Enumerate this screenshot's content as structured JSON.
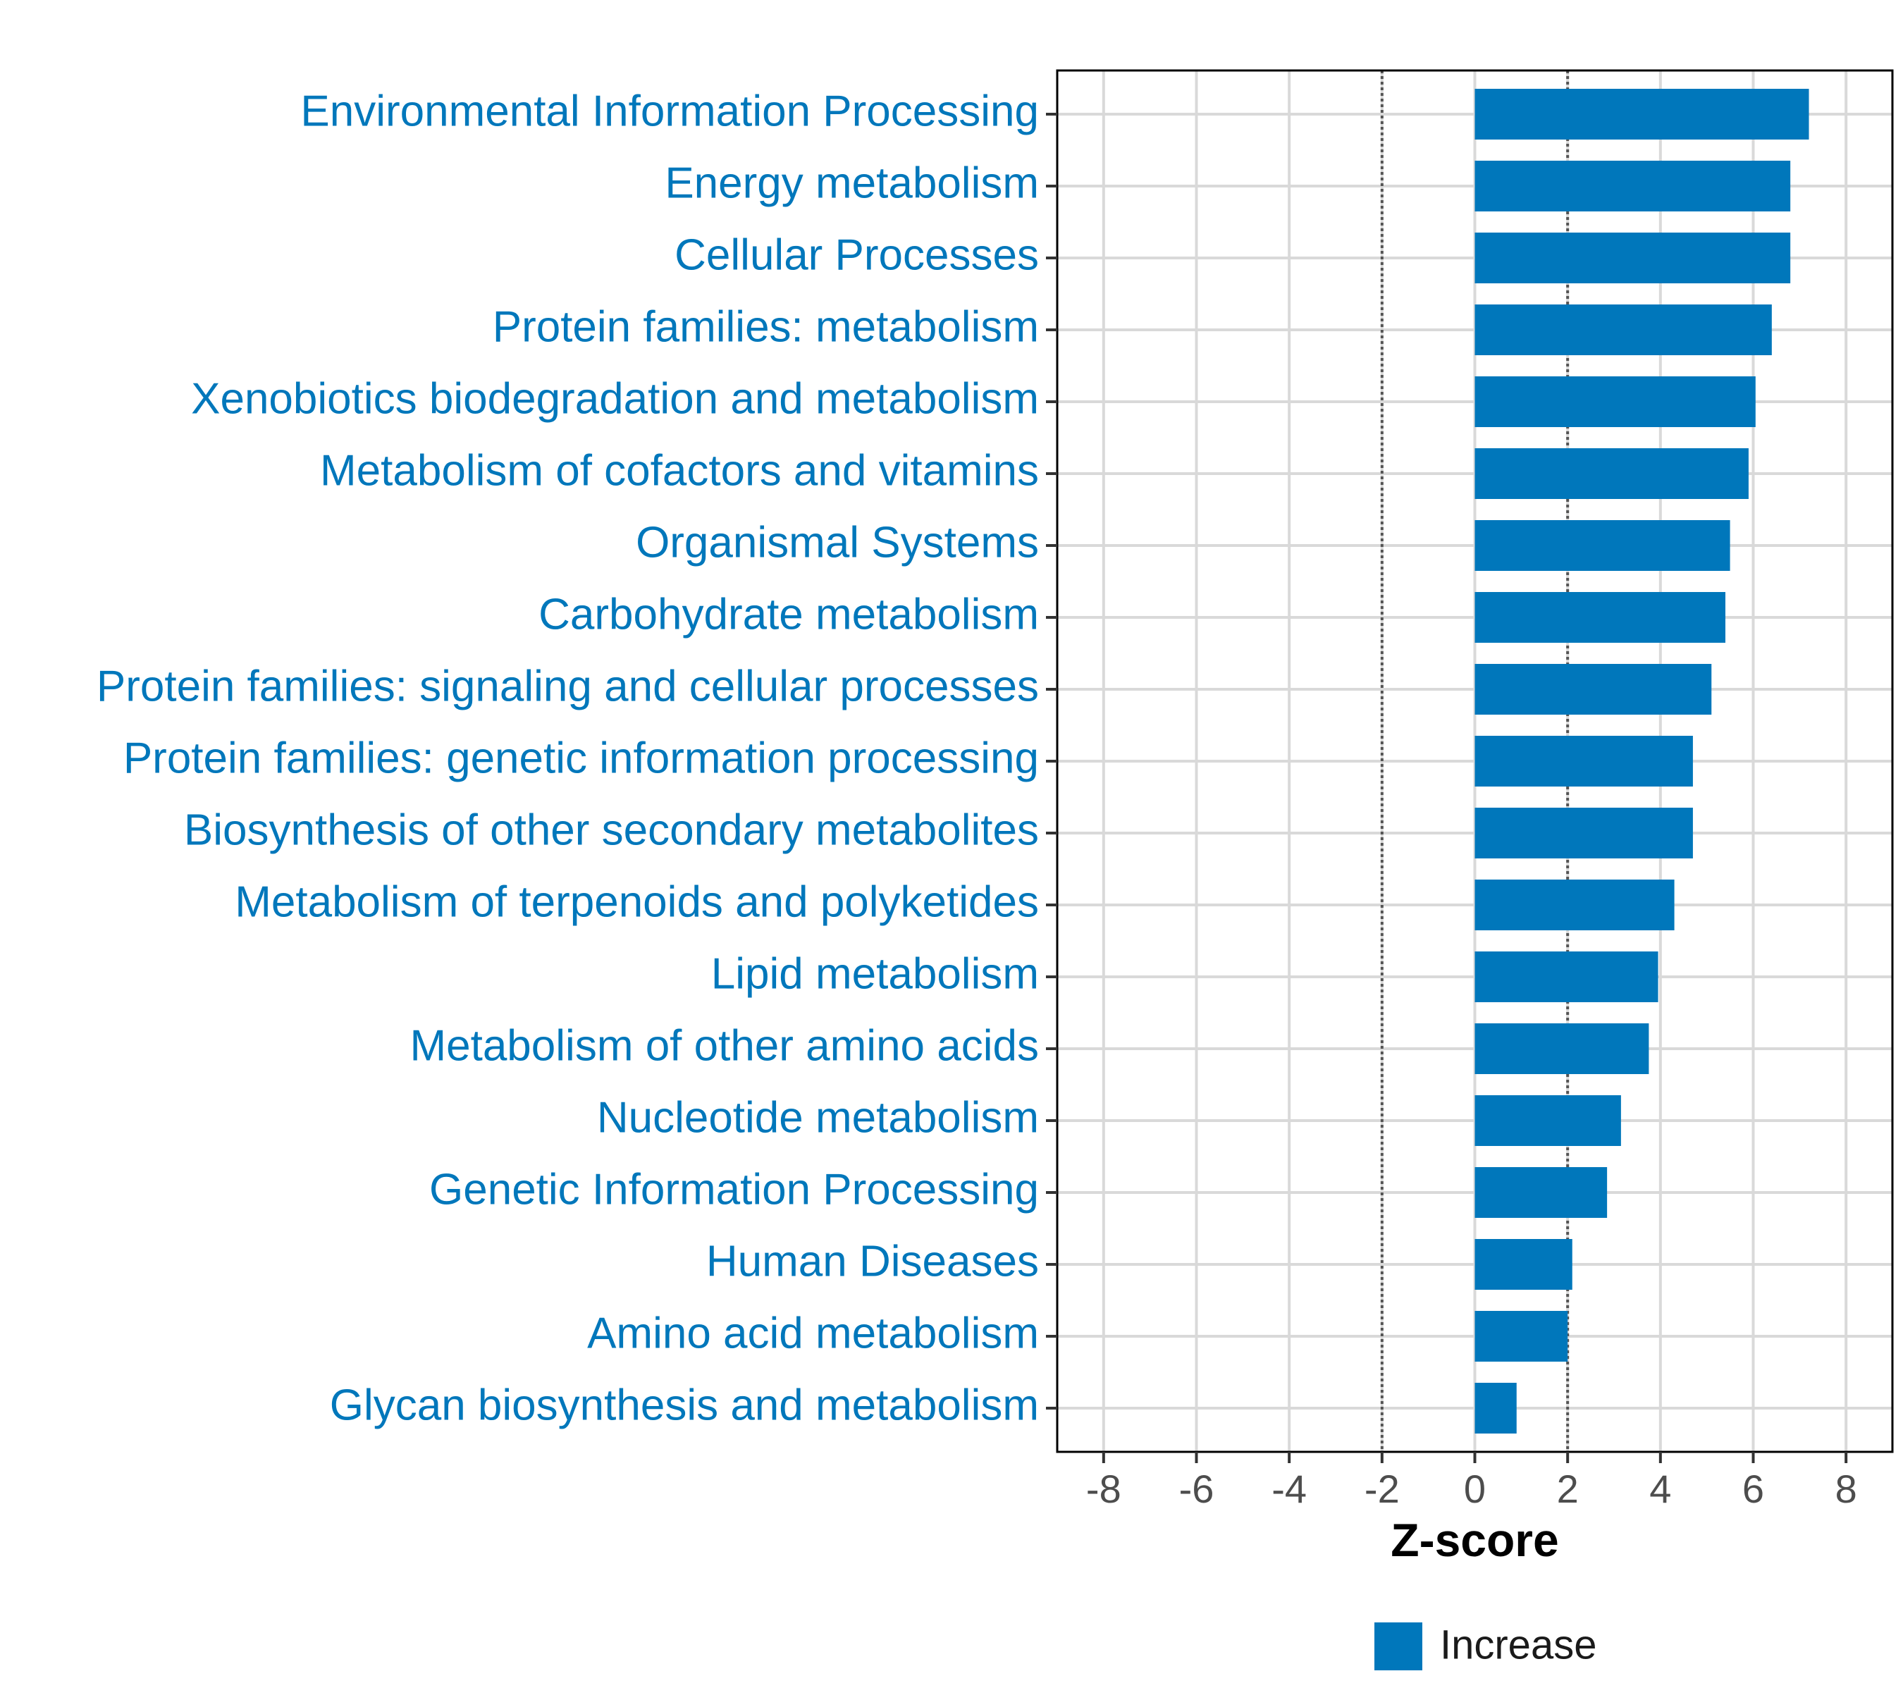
{
  "chart_data": {
    "type": "bar",
    "orientation": "horizontal",
    "categories": [
      "Environmental Information Processing",
      "Energy metabolism",
      "Cellular Processes",
      "Protein families: metabolism",
      "Xenobiotics biodegradation and metabolism",
      "Metabolism of cofactors and vitamins",
      "Organismal Systems",
      "Carbohydrate metabolism",
      "Protein families: signaling and cellular processes",
      "Protein families: genetic information processing",
      "Biosynthesis of other secondary metabolites",
      "Metabolism of terpenoids and polyketides",
      "Lipid metabolism",
      "Metabolism of other amino acids",
      "Nucleotide metabolism",
      "Genetic Information Processing",
      "Human Diseases",
      "Amino acid metabolism",
      "Glycan biosynthesis and metabolism"
    ],
    "values": [
      7.2,
      6.8,
      6.8,
      6.4,
      6.05,
      5.9,
      5.5,
      5.4,
      5.1,
      4.7,
      4.7,
      4.3,
      3.95,
      3.75,
      3.15,
      2.85,
      2.1,
      2.0,
      0.9
    ],
    "series_name": "Increase",
    "xlabel": "Z-score",
    "xlim": [
      -9,
      9
    ],
    "xticks": [
      -8,
      -6,
      -4,
      -2,
      0,
      2,
      4,
      6,
      8
    ],
    "xtick_labels": [
      "-8",
      "-6",
      "-4",
      "-2",
      "0",
      "2",
      "4",
      "6",
      "8"
    ],
    "reference_lines": [
      -2,
      2
    ],
    "grid": true,
    "legend": {
      "position": "bottom",
      "label": "Increase"
    },
    "colors": {
      "bar": "#0077bb",
      "category_label": "#0077bb",
      "grid": "#d9d9d9",
      "reference_line": "#555555"
    }
  }
}
